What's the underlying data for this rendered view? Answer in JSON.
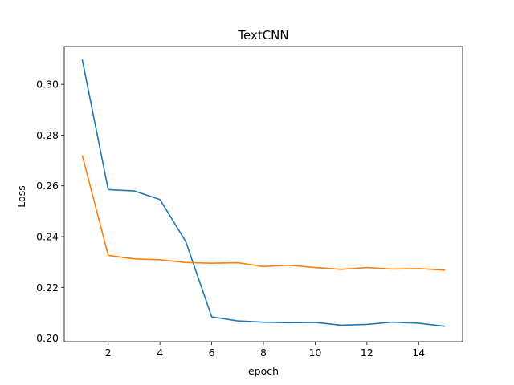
{
  "chart_data": {
    "type": "line",
    "title": "TextCNN",
    "xlabel": "epoch",
    "ylabel": "Loss",
    "xlim": [
      0.3,
      15.7
    ],
    "ylim": [
      0.1986,
      0.3149
    ],
    "xticks": [
      2,
      4,
      6,
      8,
      10,
      12,
      14
    ],
    "yticks": [
      0.2,
      0.22,
      0.24,
      0.26,
      0.28,
      0.3
    ],
    "ytick_labels": [
      "0.20",
      "0.22",
      "0.24",
      "0.26",
      "0.28",
      "0.30"
    ],
    "grid": false,
    "x": [
      1,
      2,
      3,
      4,
      5,
      6,
      7,
      8,
      9,
      10,
      11,
      12,
      13,
      14,
      15
    ],
    "series": [
      {
        "color": "#1f77b4",
        "values": [
          0.3095,
          0.2585,
          0.258,
          0.2546,
          0.238,
          0.2084,
          0.2068,
          0.2063,
          0.2061,
          0.2062,
          0.2051,
          0.2054,
          0.2063,
          0.2059,
          0.2047
        ]
      },
      {
        "color": "#ff7f0e",
        "values": [
          0.2718,
          0.2326,
          0.2312,
          0.2309,
          0.2298,
          0.2295,
          0.2297,
          0.2282,
          0.2287,
          0.2278,
          0.2271,
          0.2278,
          0.2272,
          0.2274,
          0.2268
        ]
      }
    ]
  }
}
